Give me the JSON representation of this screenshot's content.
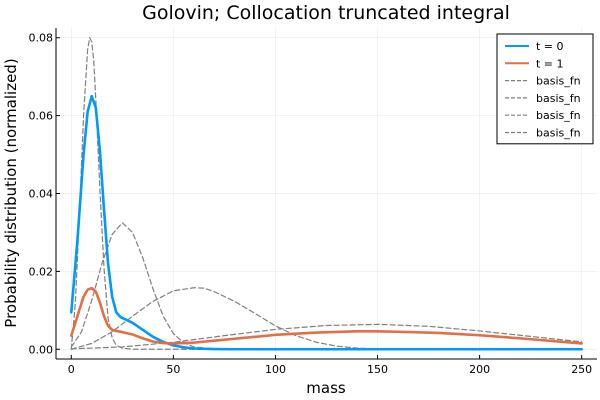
{
  "chart_data": {
    "type": "line",
    "title": "Golovin; Collocation truncated integral",
    "xlabel": "mass",
    "ylabel": "Probability distribution (normalized)",
    "xlim": [
      -7.5,
      257.5
    ],
    "ylim": [
      -0.0025,
      0.0825
    ],
    "xticks": [
      0,
      50,
      100,
      150,
      200,
      250
    ],
    "xtick_labels": [
      "0",
      "50",
      "100",
      "150",
      "200",
      "250"
    ],
    "yticks": [
      0.0,
      0.02,
      0.04,
      0.06,
      0.08
    ],
    "ytick_labels": [
      "0.00",
      "0.02",
      "0.04",
      "0.06",
      "0.08"
    ],
    "grid": true,
    "legend_position": "top-right",
    "series": [
      {
        "name": "t = 0",
        "color": "#009af9",
        "style": "solid",
        "x": [
          0,
          3,
          6,
          8,
          10,
          12,
          14,
          16,
          18,
          20,
          22,
          24,
          26,
          30,
          35,
          40,
          45,
          50,
          55,
          60,
          70,
          80,
          100,
          150,
          200,
          250
        ],
        "y": [
          0.0095,
          0.028,
          0.05,
          0.061,
          0.065,
          0.062,
          0.051,
          0.036,
          0.022,
          0.0135,
          0.0095,
          0.0083,
          0.0078,
          0.0068,
          0.005,
          0.0032,
          0.0019,
          0.001,
          0.0005,
          0.0002,
          5e-05,
          0.0,
          0.0,
          0.0,
          0.0,
          0.0
        ]
      },
      {
        "name": "t = 1",
        "color": "#e26f46",
        "style": "solid",
        "x": [
          0,
          3,
          6,
          8,
          10,
          12,
          14,
          16,
          18,
          20,
          22,
          25,
          30,
          35,
          40,
          45,
          50,
          60,
          70,
          80,
          100,
          120,
          140,
          150,
          160,
          180,
          200,
          220,
          250
        ],
        "y": [
          0.0035,
          0.0085,
          0.0135,
          0.0153,
          0.0157,
          0.0148,
          0.012,
          0.0085,
          0.006,
          0.005,
          0.0047,
          0.0044,
          0.0038,
          0.0028,
          0.002,
          0.0016,
          0.0015,
          0.0017,
          0.0022,
          0.0027,
          0.0037,
          0.0043,
          0.0046,
          0.0046,
          0.0045,
          0.0042,
          0.0036,
          0.0028,
          0.0015
        ]
      },
      {
        "name": "basis_fn",
        "color": "#808080",
        "style": "dashed",
        "x": [
          0,
          2,
          4,
          6,
          8,
          9,
          10,
          11,
          12,
          14,
          16,
          18,
          20,
          22,
          25,
          30,
          40,
          250
        ],
        "y": [
          0.0,
          0.012,
          0.035,
          0.06,
          0.077,
          0.08,
          0.079,
          0.074,
          0.064,
          0.041,
          0.021,
          0.008,
          0.003,
          0.001,
          0.0003,
          0.0,
          0.0,
          0.0
        ]
      },
      {
        "name": "basis_fn",
        "color": "#808080",
        "style": "dashed",
        "x": [
          0,
          5,
          10,
          15,
          20,
          25,
          30,
          35,
          40,
          45,
          50,
          55,
          60,
          70,
          80,
          250
        ],
        "y": [
          0.0006,
          0.0045,
          0.0125,
          0.022,
          0.0295,
          0.0325,
          0.03,
          0.0235,
          0.0155,
          0.0085,
          0.004,
          0.0017,
          0.0006,
          0.0001,
          0.0,
          0.0
        ]
      },
      {
        "name": "basis_fn",
        "color": "#808080",
        "style": "dashed",
        "x": [
          0,
          10,
          20,
          30,
          40,
          50,
          60,
          65,
          70,
          80,
          90,
          100,
          110,
          120,
          130,
          140,
          150,
          250
        ],
        "y": [
          0.0,
          0.0015,
          0.0045,
          0.0085,
          0.0123,
          0.015,
          0.0158,
          0.0157,
          0.0148,
          0.0123,
          0.0092,
          0.006,
          0.0035,
          0.0018,
          0.0008,
          0.0003,
          0.0001,
          0.0
        ]
      },
      {
        "name": "basis_fn",
        "color": "#808080",
        "style": "dashed",
        "x": [
          0,
          25,
          50,
          75,
          100,
          125,
          150,
          175,
          200,
          225,
          250
        ],
        "y": [
          0.0001,
          0.0006,
          0.0018,
          0.0035,
          0.0051,
          0.0061,
          0.0064,
          0.0059,
          0.0047,
          0.0033,
          0.0019
        ]
      }
    ]
  }
}
